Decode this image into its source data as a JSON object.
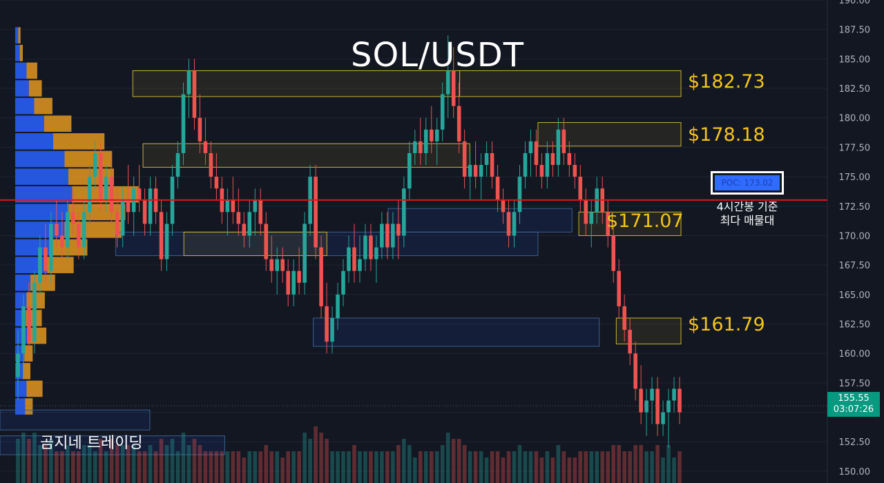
{
  "chart_data": {
    "type": "candlestick",
    "title": "SOL/USDT",
    "ylim": [
      149,
      190
    ],
    "y_ticks": [
      "190.00",
      "187.50",
      "185.00",
      "182.50",
      "180.00",
      "177.50",
      "175.00",
      "172.50",
      "170.00",
      "167.50",
      "165.00",
      "162.50",
      "160.00",
      "157.50",
      "155.00",
      "152.50",
      "150.00"
    ],
    "level_labels": [
      {
        "text": "$182.73",
        "price": 182.73
      },
      {
        "text": "$178.18",
        "price": 178.18
      },
      {
        "text": "$171.07",
        "price": 171.07
      },
      {
        "text": "$161.79",
        "price": 161.79
      }
    ],
    "poc": {
      "label": "POC: 173.02",
      "price": 173.02,
      "note_line1": "4시간봉 기준",
      "note_line2": "최다 매물대"
    },
    "last_price": {
      "price_text": "155.55",
      "countdown": "03:07:26",
      "price": 155.55
    },
    "zones_yellow": [
      {
        "x0": 0.195,
        "x1": 0.675,
        "top": 184.0,
        "bottom": 181.8
      },
      {
        "x0": 0.675,
        "x1": 1.0,
        "top": 184.0,
        "bottom": 181.8
      },
      {
        "x0": 0.21,
        "x1": 0.69,
        "top": 177.8,
        "bottom": 175.8
      },
      {
        "x0": 0.79,
        "x1": 1.0,
        "top": 179.6,
        "bottom": 177.6
      },
      {
        "x0": 0.27,
        "x1": 0.48,
        "top": 170.3,
        "bottom": 168.3
      },
      {
        "x0": 0.85,
        "x1": 1.0,
        "top": 172.0,
        "bottom": 170.0
      },
      {
        "x0": 0.905,
        "x1": 1.0,
        "top": 163.0,
        "bottom": 160.8
      }
    ],
    "zones_blue": [
      {
        "x0": 0.17,
        "x1": 0.79,
        "top": 170.3,
        "bottom": 168.3
      },
      {
        "x0": 0.57,
        "x1": 0.84,
        "top": 172.3,
        "bottom": 170.3
      },
      {
        "x0": 0.46,
        "x1": 0.88,
        "top": 163.0,
        "bottom": 160.6
      },
      {
        "x0": 0.0,
        "x1": 0.22,
        "top": 155.2,
        "bottom": 153.5
      },
      {
        "x0": 0.0,
        "x1": 0.33,
        "top": 153.0,
        "bottom": 151.4
      }
    ],
    "candles": [
      [
        158,
        162,
        156,
        160
      ],
      [
        160,
        165,
        158,
        164
      ],
      [
        164,
        166,
        160,
        161
      ],
      [
        161,
        167,
        160,
        166
      ],
      [
        166,
        170,
        165,
        169
      ],
      [
        169,
        171,
        166,
        167
      ],
      [
        167,
        172,
        166,
        171
      ],
      [
        171,
        173,
        169,
        170
      ],
      [
        170,
        172,
        168,
        169
      ],
      [
        169,
        173,
        168,
        172
      ],
      [
        172,
        174,
        170,
        171
      ],
      [
        171,
        172,
        168,
        169
      ],
      [
        169,
        173,
        168,
        172
      ],
      [
        172,
        176,
        171,
        175
      ],
      [
        175,
        178,
        174,
        177
      ],
      [
        177,
        178,
        172,
        173
      ],
      [
        173,
        176,
        172,
        175
      ],
      [
        175,
        177,
        171,
        172
      ],
      [
        172,
        174,
        169,
        170
      ],
      [
        170,
        174,
        169,
        173
      ],
      [
        173,
        176,
        171,
        172
      ],
      [
        172,
        175,
        170,
        174
      ],
      [
        174,
        176,
        172,
        173
      ],
      [
        173,
        174,
        170,
        171
      ],
      [
        171,
        175,
        170,
        174
      ],
      [
        174,
        175,
        171,
        172
      ],
      [
        172,
        173,
        167,
        168
      ],
      [
        168,
        172,
        167,
        171
      ],
      [
        171,
        176,
        170,
        175
      ],
      [
        175,
        178,
        174,
        177
      ],
      [
        177,
        183,
        176,
        182
      ],
      [
        182,
        185,
        180,
        184
      ],
      [
        184,
        185,
        179,
        180
      ],
      [
        180,
        182,
        177,
        178
      ],
      [
        178,
        180,
        176,
        177
      ],
      [
        177,
        178,
        174,
        175
      ],
      [
        175,
        177,
        173,
        174
      ],
      [
        174,
        175,
        171,
        172
      ],
      [
        172,
        174,
        170,
        173
      ],
      [
        173,
        175,
        171,
        172
      ],
      [
        172,
        174,
        170,
        171
      ],
      [
        171,
        172,
        169,
        170
      ],
      [
        170,
        173,
        169,
        172
      ],
      [
        172,
        174,
        170,
        173
      ],
      [
        173,
        174,
        170,
        171
      ],
      [
        171,
        172,
        167,
        168
      ],
      [
        168,
        170,
        166,
        167
      ],
      [
        167,
        169,
        165,
        168
      ],
      [
        168,
        169,
        166,
        167
      ],
      [
        167,
        168,
        164,
        165
      ],
      [
        165,
        168,
        164,
        167
      ],
      [
        167,
        169,
        165,
        166
      ],
      [
        166,
        172,
        165,
        171
      ],
      [
        171,
        176,
        170,
        175
      ],
      [
        175,
        176,
        168,
        169
      ],
      [
        169,
        170,
        163,
        164
      ],
      [
        164,
        166,
        160,
        161
      ],
      [
        161,
        164,
        160,
        163
      ],
      [
        163,
        166,
        162,
        165
      ],
      [
        165,
        168,
        164,
        167
      ],
      [
        167,
        170,
        166,
        169
      ],
      [
        169,
        171,
        166,
        167
      ],
      [
        167,
        170,
        166,
        168
      ],
      [
        168,
        171,
        167,
        170
      ],
      [
        170,
        171,
        167,
        168
      ],
      [
        168,
        170,
        166,
        169
      ],
      [
        169,
        172,
        168,
        171
      ],
      [
        171,
        172,
        168,
        169
      ],
      [
        169,
        172,
        168,
        171
      ],
      [
        171,
        173,
        168,
        170
      ],
      [
        170,
        175,
        169,
        174
      ],
      [
        174,
        178,
        173,
        177
      ],
      [
        177,
        179,
        176,
        178
      ],
      [
        178,
        180,
        176,
        177
      ],
      [
        177,
        180,
        176,
        179
      ],
      [
        179,
        181,
        177,
        178
      ],
      [
        178,
        180,
        176,
        179
      ],
      [
        179,
        183,
        178,
        182
      ],
      [
        182,
        187,
        180,
        184
      ],
      [
        184,
        186,
        180,
        181
      ],
      [
        181,
        183,
        177,
        178
      ],
      [
        178,
        179,
        174,
        175
      ],
      [
        175,
        177,
        173,
        176
      ],
      [
        176,
        178,
        174,
        175
      ],
      [
        175,
        177,
        173,
        176
      ],
      [
        176,
        178,
        175,
        177
      ],
      [
        177,
        178,
        174,
        175
      ],
      [
        175,
        176,
        172,
        173
      ],
      [
        173,
        174,
        171,
        172
      ],
      [
        172,
        173,
        169,
        170
      ],
      [
        170,
        173,
        169,
        172
      ],
      [
        172,
        176,
        171,
        175
      ],
      [
        175,
        178,
        174,
        177
      ],
      [
        177,
        179,
        175,
        178
      ],
      [
        178,
        179,
        175,
        176
      ],
      [
        176,
        177,
        174,
        175
      ],
      [
        175,
        178,
        174,
        177
      ],
      [
        177,
        178,
        175,
        176
      ],
      [
        176,
        180,
        175,
        179
      ],
      [
        179,
        180,
        176,
        177
      ],
      [
        177,
        178,
        175,
        176
      ],
      [
        176,
        177,
        174,
        175
      ],
      [
        175,
        176,
        172,
        173
      ],
      [
        173,
        174,
        170,
        171
      ],
      [
        171,
        173,
        169,
        172
      ],
      [
        172,
        175,
        171,
        174
      ],
      [
        174,
        175,
        171,
        172
      ],
      [
        172,
        173,
        169,
        170
      ],
      [
        170,
        171,
        166,
        167
      ],
      [
        167,
        168,
        163,
        164
      ],
      [
        164,
        165,
        161,
        162
      ],
      [
        162,
        163,
        159,
        160
      ],
      [
        160,
        161,
        156,
        157
      ],
      [
        157,
        159,
        154,
        155
      ],
      [
        155,
        157,
        153,
        156
      ],
      [
        156,
        158,
        154,
        157
      ],
      [
        157,
        158,
        153,
        154
      ],
      [
        154,
        156,
        153,
        155
      ],
      [
        155,
        157,
        152,
        156
      ],
      [
        156,
        158,
        155,
        157
      ],
      [
        157,
        158,
        154,
        155
      ]
    ],
    "volume_profile": [
      {
        "price": 187.0,
        "buy": 8,
        "sell": 6
      },
      {
        "price": 185.5,
        "buy": 12,
        "sell": 8
      },
      {
        "price": 184.0,
        "buy": 30,
        "sell": 28
      },
      {
        "price": 182.5,
        "buy": 36,
        "sell": 34
      },
      {
        "price": 181.0,
        "buy": 50,
        "sell": 48
      },
      {
        "price": 179.5,
        "buy": 76,
        "sell": 72
      },
      {
        "price": 178.0,
        "buy": 100,
        "sell": 135
      },
      {
        "price": 176.5,
        "buy": 130,
        "sell": 125
      },
      {
        "price": 175.0,
        "buy": 140,
        "sell": 120
      },
      {
        "price": 173.5,
        "buy": 150,
        "sell": 175
      },
      {
        "price": 172.0,
        "buy": 140,
        "sell": 150
      },
      {
        "price": 170.5,
        "buy": 130,
        "sell": 150
      },
      {
        "price": 169.0,
        "buy": 90,
        "sell": 100
      },
      {
        "price": 167.5,
        "buy": 84,
        "sell": 70
      },
      {
        "price": 166.0,
        "buy": 40,
        "sell": 65
      },
      {
        "price": 164.5,
        "buy": 30,
        "sell": 48
      },
      {
        "price": 163.0,
        "buy": 28,
        "sell": 42
      },
      {
        "price": 161.5,
        "buy": 32,
        "sell": 50
      },
      {
        "price": 160.0,
        "buy": 24,
        "sell": 22
      },
      {
        "price": 158.5,
        "buy": 20,
        "sell": 20
      },
      {
        "price": 157.0,
        "buy": 30,
        "sell": 42
      },
      {
        "price": 155.5,
        "buy": 26,
        "sell": 20
      }
    ],
    "colors": {
      "up": "#26a69a",
      "down": "#ef5350",
      "buy": "#2962ff",
      "sell": "#f0a020",
      "poc_line": "#e0161b",
      "zone_yellow": "#c8b432",
      "zone_blue": "#3b5f8f",
      "grid": "#1e2433",
      "axis_text": "#b2b5be"
    }
  },
  "poc_note": {
    "line1": "4시간봉 기준",
    "line2": "최다 매물대"
  },
  "watermark": "곰지네 트레이딩"
}
